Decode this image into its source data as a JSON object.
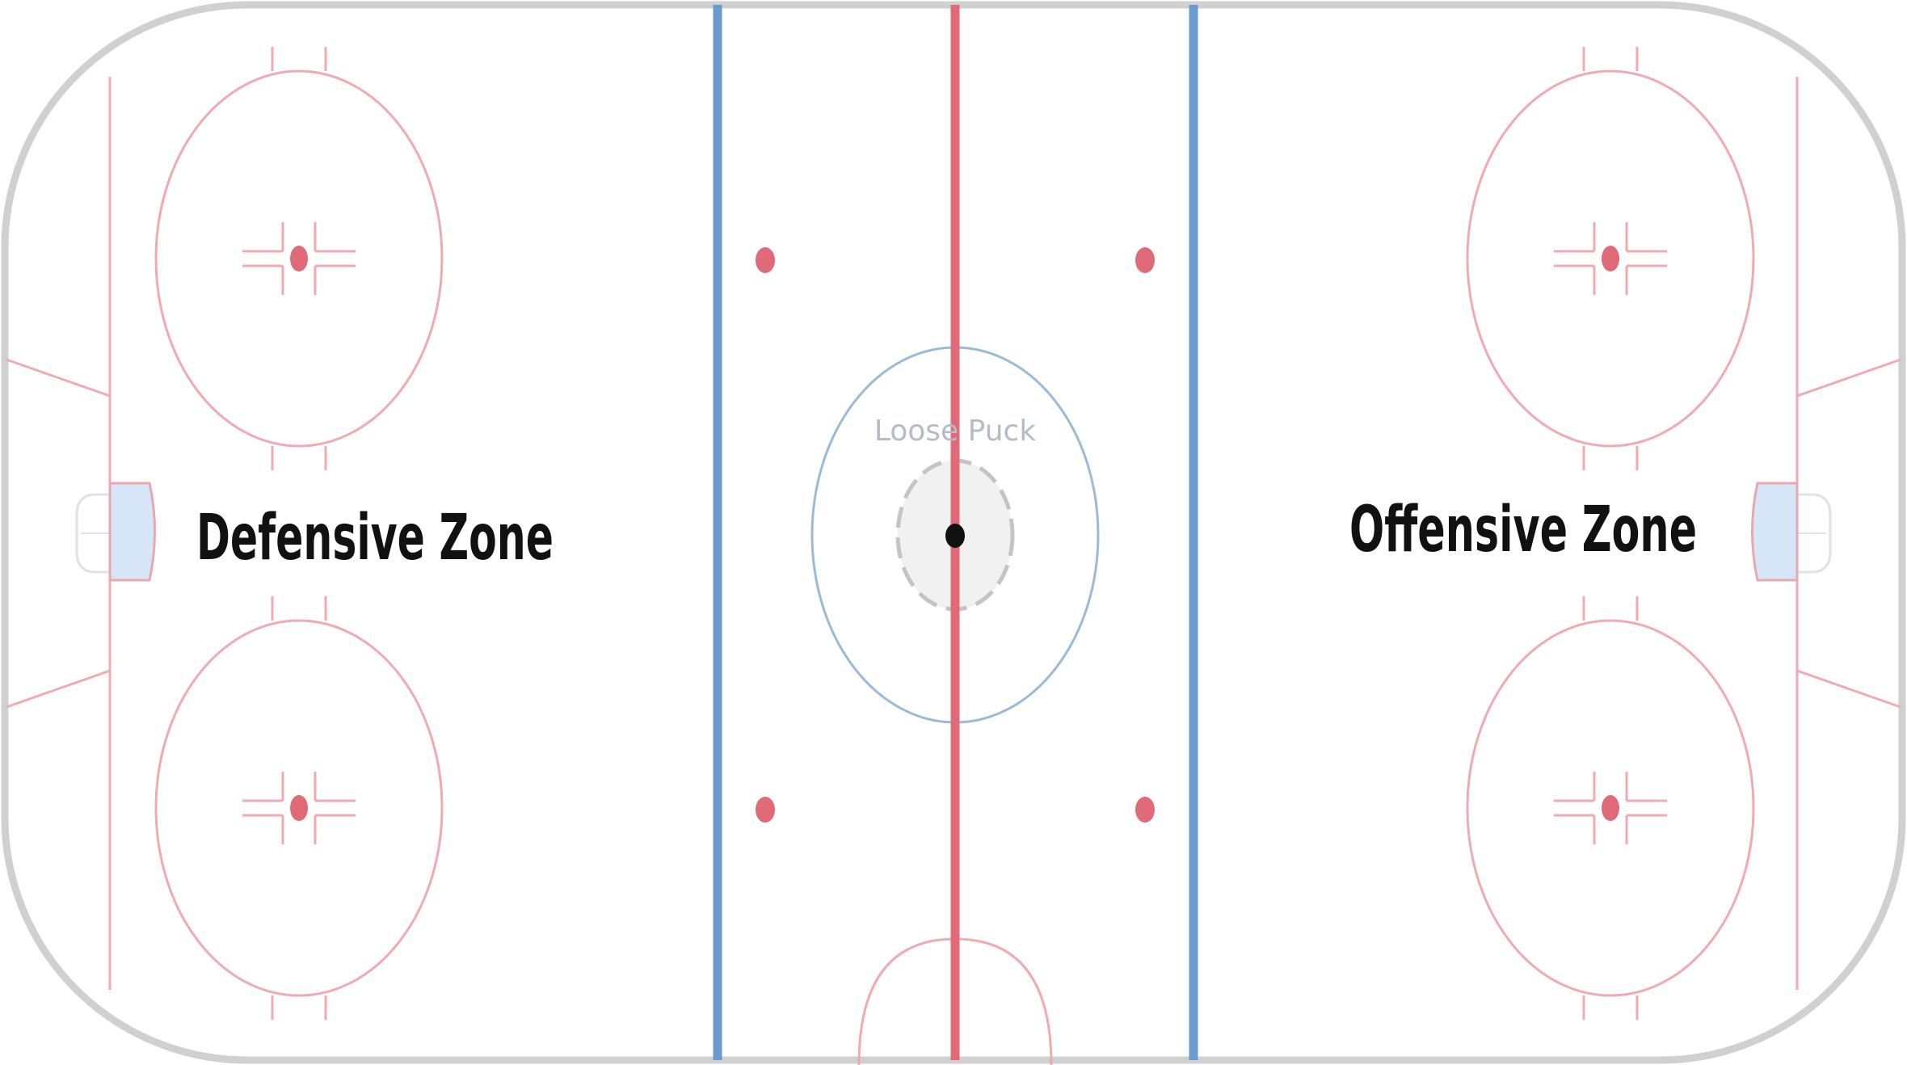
{
  "labels": {
    "defensive_zone": "Defensive Zone",
    "offensive_zone": "Offensive Zone",
    "loose_puck": "Loose Puck"
  },
  "colors": {
    "boards": "#d0d0d0",
    "red_line": "#e06a78",
    "thin_red": "#f0aab2",
    "blue_line": "#6b9bcc",
    "center_circle": "#9bbad8",
    "crease_fill": "#d6e6f8",
    "crease_edge": "#e8a8b0",
    "net": "#e2e2e2",
    "puck": "#111111",
    "puck_area_fill": "#f1f1f1",
    "puck_area_edge": "#c4c4c4"
  },
  "icons": {
    "puck": "hockey-puck-icon"
  }
}
